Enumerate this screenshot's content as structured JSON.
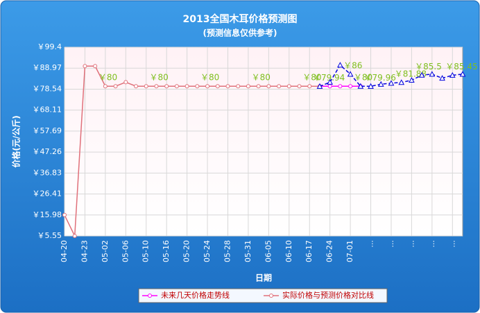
{
  "chart_data": {
    "type": "line",
    "title": "2013全国木耳价格预测图",
    "subtitle": "(预测信息仅供参考)",
    "y_label": "价格(元/公斤)",
    "x_label": "日期",
    "categories": [
      "04-20",
      null,
      "04-23",
      null,
      "05-02",
      null,
      "05-06",
      null,
      "05-10",
      null,
      "05-16",
      null,
      "05-20",
      null,
      "05-24",
      null,
      "05-28",
      null,
      "05-31",
      null,
      "06-05",
      null,
      "06-10",
      null,
      "06-17",
      null,
      "06-24",
      null,
      "07-01",
      null,
      "...",
      null,
      "...",
      null,
      "...",
      null,
      "...",
      null,
      "...",
      null
    ],
    "ylim": [
      5.55,
      99.4
    ],
    "yticks": [
      {
        "value": 5.55,
        "label": "￥5.55"
      },
      {
        "value": 15.98,
        "label": "￥15.98"
      },
      {
        "value": 26.41,
        "label": "￥26.41"
      },
      {
        "value": 36.83,
        "label": "￥36.83"
      },
      {
        "value": 47.26,
        "label": "￥47.26"
      },
      {
        "value": 57.69,
        "label": "￥57.69"
      },
      {
        "value": 68.11,
        "label": "￥68.11"
      },
      {
        "value": 78.54,
        "label": "￥78.54"
      },
      {
        "value": 88.97,
        "label": "￥88.97"
      },
      {
        "value": 99.4,
        "label": "￥99.4"
      }
    ],
    "grid": true,
    "legend": "bottom",
    "series": [
      {
        "name": "未来几天价格走势线",
        "color": "#ff00ff",
        "marker": "circle",
        "dashed": false,
        "values": [
          null,
          null,
          null,
          null,
          null,
          null,
          null,
          null,
          null,
          null,
          null,
          null,
          null,
          null,
          null,
          null,
          null,
          null,
          null,
          null,
          null,
          null,
          null,
          null,
          null,
          80,
          80,
          80,
          80,
          80,
          null,
          null,
          null,
          null,
          null,
          null,
          null,
          null,
          null,
          null
        ],
        "value_labels": [
          null,
          null,
          null,
          null,
          null,
          null,
          null,
          null,
          null,
          null,
          null,
          null,
          null,
          null,
          null,
          null,
          null,
          null,
          null,
          null,
          null,
          null,
          null,
          null,
          null,
          null,
          null,
          null,
          null,
          "￥80",
          null,
          null,
          null,
          null,
          null,
          null,
          null,
          null,
          null,
          null
        ]
      },
      {
        "name": "实际价格与预测价格对比线",
        "color": "#e0707a",
        "marker": "circle",
        "dashed": false,
        "values": [
          15.98,
          5.55,
          90,
          90,
          80,
          80,
          82,
          80,
          80,
          80,
          80,
          80,
          80,
          80,
          80,
          80,
          80,
          80,
          80,
          80,
          80,
          80,
          80,
          80,
          80,
          79.94,
          null,
          null,
          null,
          null,
          null,
          null,
          null,
          null,
          null,
          null,
          null,
          null,
          null,
          null
        ],
        "value_labels": [
          null,
          null,
          null,
          null,
          "￥80",
          null,
          null,
          null,
          null,
          "￥80",
          null,
          null,
          null,
          null,
          "￥80",
          null,
          null,
          null,
          null,
          "￥80",
          null,
          null,
          null,
          null,
          "￥80",
          "￥79.94",
          null,
          null,
          null,
          null,
          null,
          null,
          null,
          null,
          null,
          null,
          null,
          null,
          null,
          null
        ]
      },
      {
        "color": "#0000dd",
        "marker": "triangle",
        "dashed": true,
        "values": [
          null,
          null,
          null,
          null,
          null,
          null,
          null,
          null,
          null,
          null,
          null,
          null,
          null,
          null,
          null,
          null,
          null,
          null,
          null,
          null,
          null,
          null,
          null,
          null,
          null,
          79.94,
          82,
          90.5,
          86,
          80,
          79.96,
          81,
          81.5,
          81.88,
          83,
          85.5,
          86,
          84,
          85.45,
          86
        ],
        "value_labels": [
          null,
          null,
          null,
          null,
          null,
          null,
          null,
          null,
          null,
          null,
          null,
          null,
          null,
          null,
          null,
          null,
          null,
          null,
          null,
          null,
          null,
          null,
          null,
          null,
          null,
          null,
          null,
          null,
          "￥86",
          null,
          "￥79.96",
          null,
          null,
          "￥81.88",
          null,
          "￥85.5",
          null,
          null,
          "￥85.45",
          null
        ]
      }
    ]
  }
}
